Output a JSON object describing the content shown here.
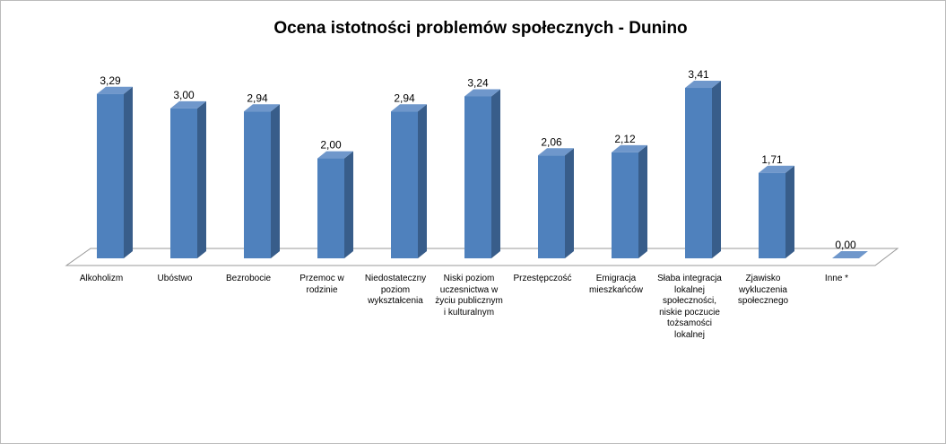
{
  "chart_data": {
    "type": "bar3d",
    "title": "Ocena istotności problemów społecznych - Dunino",
    "categories": [
      "Alkoholizm",
      "Ubóstwo",
      "Bezrobocie",
      "Przemoc w rodzinie",
      "Niedostateczny poziom wykształcenia",
      "Niski poziom uczesnictwa w życiu publicznym i kulturalnym",
      "Przestępczość",
      "Emigracja mieszkańców",
      "Słaba integracja lokalnej społeczności, niskie poczucie tożsamości lokalnej",
      "Zjawisko wykluczenia społecznego",
      "Inne *"
    ],
    "values": [
      3.29,
      3.0,
      2.94,
      2.0,
      2.94,
      3.24,
      2.06,
      2.12,
      3.41,
      1.71,
      0.0
    ],
    "value_labels": [
      "3,29",
      "3,00",
      "2,94",
      "2,00",
      "2,94",
      "3,24",
      "2,06",
      "2,12",
      "3,41",
      "1,71",
      "0,00"
    ],
    "color": "#4f81bd",
    "ylim": [
      0,
      3.5
    ]
  }
}
